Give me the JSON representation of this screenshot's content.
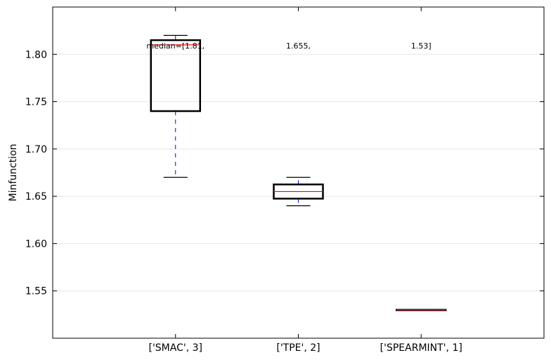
{
  "chart_data": {
    "type": "box",
    "title": "",
    "xlabel": "",
    "ylabel": "Minfunction",
    "ylim": [
      1.5,
      1.85
    ],
    "yticks": [
      1.55,
      1.6,
      1.65,
      1.7,
      1.75,
      1.8
    ],
    "ytick_labels": [
      "1.55",
      "1.60",
      "1.65",
      "1.70",
      "1.75",
      "1.80"
    ],
    "grid": "horizontal",
    "categories": [
      "['SMAC', 3]",
      "['TPE', 2]",
      "['SPEARMINT', 1]"
    ],
    "boxes": [
      {
        "whisker_low": 1.67,
        "q1": 1.74,
        "median": 1.81,
        "q3": 1.815,
        "whisker_high": 1.82
      },
      {
        "whisker_low": 1.64,
        "q1": 1.6475,
        "median": 1.655,
        "q3": 1.6625,
        "whisker_high": 1.67
      },
      {
        "whisker_low": 1.53,
        "q1": 1.53,
        "median": 1.53,
        "q3": 1.53,
        "whisker_high": 1.53
      }
    ],
    "annotations": [
      "median=[1.81,",
      "1.655,",
      "1.53]"
    ],
    "colors": {
      "box": "#000000",
      "median": "#ff0000",
      "whisker": "#0000ff",
      "grid": "#e6e6e6"
    }
  }
}
